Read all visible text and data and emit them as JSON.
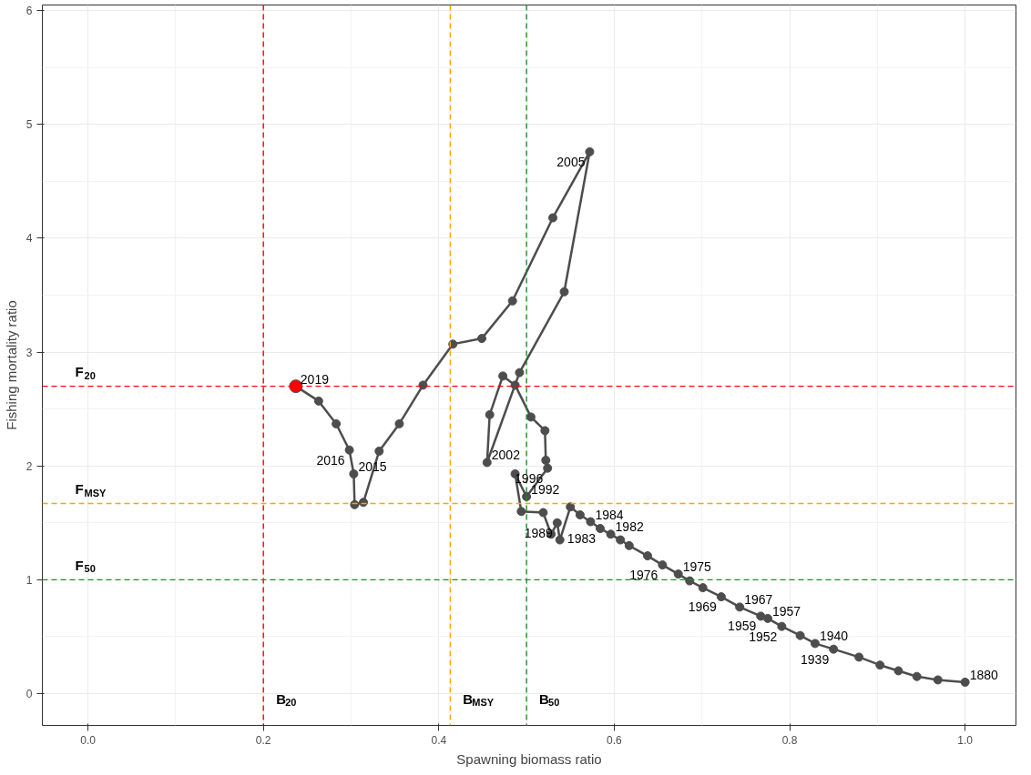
{
  "chart_data": {
    "type": "line",
    "xlabel": "Spawning biomass ratio",
    "ylabel": "Fishing mortality ratio",
    "xlim": [
      -0.052,
      1.058
    ],
    "ylim": [
      -0.28,
      6.05
    ],
    "xticks": [
      {
        "value": 0,
        "label": "0.0"
      },
      {
        "value": 0.2,
        "label": "0.2"
      },
      {
        "value": 0.4,
        "label": "0.4"
      },
      {
        "value": 0.6,
        "label": "0.6"
      },
      {
        "value": 0.8,
        "label": "0.8"
      },
      {
        "value": 1,
        "label": "1.0"
      }
    ],
    "yticks": [
      0,
      1,
      2,
      3,
      4,
      5,
      6
    ],
    "grid": true,
    "marker": "circle",
    "line_style": "solid",
    "series": [
      {
        "color": "#4d4d4d",
        "x": [
          1.0,
          0.969,
          0.945,
          0.924,
          0.903,
          0.879,
          0.85,
          0.829,
          0.812,
          0.791,
          0.775,
          0.767,
          0.743,
          0.722,
          0.701,
          0.686,
          0.673,
          0.655,
          0.638,
          0.617,
          0.607,
          0.596,
          0.584,
          0.573,
          0.561,
          0.55,
          0.538,
          0.535,
          0.528,
          0.519,
          0.494,
          0.487,
          0.5,
          0.524,
          0.522,
          0.521,
          0.505,
          0.487,
          0.473,
          0.458,
          0.455,
          0.492,
          0.543,
          0.572,
          0.53,
          0.484,
          0.449,
          0.416,
          0.382,
          0.355,
          0.332,
          0.314,
          0.304,
          0.303,
          0.298,
          0.283,
          0.263,
          0.237
        ],
        "values": [
          0.1,
          0.12,
          0.15,
          0.2,
          0.25,
          0.32,
          0.39,
          0.44,
          0.51,
          0.59,
          0.66,
          0.68,
          0.76,
          0.85,
          0.93,
          0.99,
          1.05,
          1.13,
          1.21,
          1.3,
          1.35,
          1.4,
          1.45,
          1.51,
          1.57,
          1.64,
          1.35,
          1.5,
          1.4,
          1.59,
          1.6,
          1.93,
          1.73,
          1.98,
          2.05,
          2.31,
          2.43,
          2.71,
          2.79,
          2.45,
          2.03,
          2.82,
          3.53,
          4.76,
          4.18,
          3.45,
          3.12,
          3.07,
          2.71,
          2.37,
          2.13,
          1.68,
          1.66,
          1.93,
          2.14,
          2.37,
          2.57,
          2.7
        ]
      },
      {
        "type": "scatter",
        "color": "#ff0000",
        "x": [
          0.237
        ],
        "values": [
          2.7
        ]
      }
    ],
    "ref_lines": [
      {
        "axis": "x",
        "value": 0.2,
        "label": "B$_{20}$",
        "color": "#ff0000",
        "line_style": "dashed"
      },
      {
        "axis": "x",
        "value": 0.413,
        "label": "B$_{MSY}$",
        "color": "#ffa500",
        "line_style": "dashed"
      },
      {
        "axis": "x",
        "value": 0.5,
        "label": "B$_{50}$",
        "color": "#228b22",
        "line_style": "dashed"
      },
      {
        "axis": "y",
        "value": 2.7,
        "label": "F$_{20}$",
        "color": "#ff0000",
        "line_style": "dashed"
      },
      {
        "axis": "y",
        "value": 1.67,
        "label": "F$_{MSY}$",
        "color": "#ffa500",
        "line_style": "dashed"
      },
      {
        "axis": "y",
        "value": 1.0,
        "label": "F$_{50}$",
        "color": "#228b22",
        "line_style": "dashed"
      }
    ],
    "annotations": [
      {
        "text": "2019",
        "x": 0.237,
        "y": 2.7
      },
      {
        "text": "2016",
        "x": 0.298,
        "y": 2.14
      },
      {
        "text": "2015",
        "x": 0.303,
        "y": 1.93
      },
      {
        "text": "2005",
        "x": 0.572,
        "y": 4.76
      },
      {
        "text": "2002",
        "x": 0.455,
        "y": 2.03
      },
      {
        "text": "1996",
        "x": 0.524,
        "y": 1.98
      },
      {
        "text": "1992",
        "x": 0.5,
        "y": 1.73
      },
      {
        "text": "1989",
        "x": 0.535,
        "y": 1.5
      },
      {
        "text": "1984",
        "x": 0.573,
        "y": 1.51
      },
      {
        "text": "1983",
        "x": 0.584,
        "y": 1.45
      },
      {
        "text": "1982",
        "x": 0.596,
        "y": 1.4
      },
      {
        "text": "1976",
        "x": 0.655,
        "y": 1.13
      },
      {
        "text": "1975",
        "x": 0.673,
        "y": 1.05
      },
      {
        "text": "1969",
        "x": 0.722,
        "y": 0.85
      },
      {
        "text": "1967",
        "x": 0.743,
        "y": 0.76
      },
      {
        "text": "1959",
        "x": 0.767,
        "y": 0.68
      },
      {
        "text": "1957",
        "x": 0.775,
        "y": 0.66
      },
      {
        "text": "1952",
        "x": 0.791,
        "y": 0.59
      },
      {
        "text": "1940",
        "x": 0.829,
        "y": 0.44
      },
      {
        "text": "1939",
        "x": 0.85,
        "y": 0.39
      },
      {
        "text": "1880",
        "x": 1.0,
        "y": 0.1
      }
    ]
  }
}
